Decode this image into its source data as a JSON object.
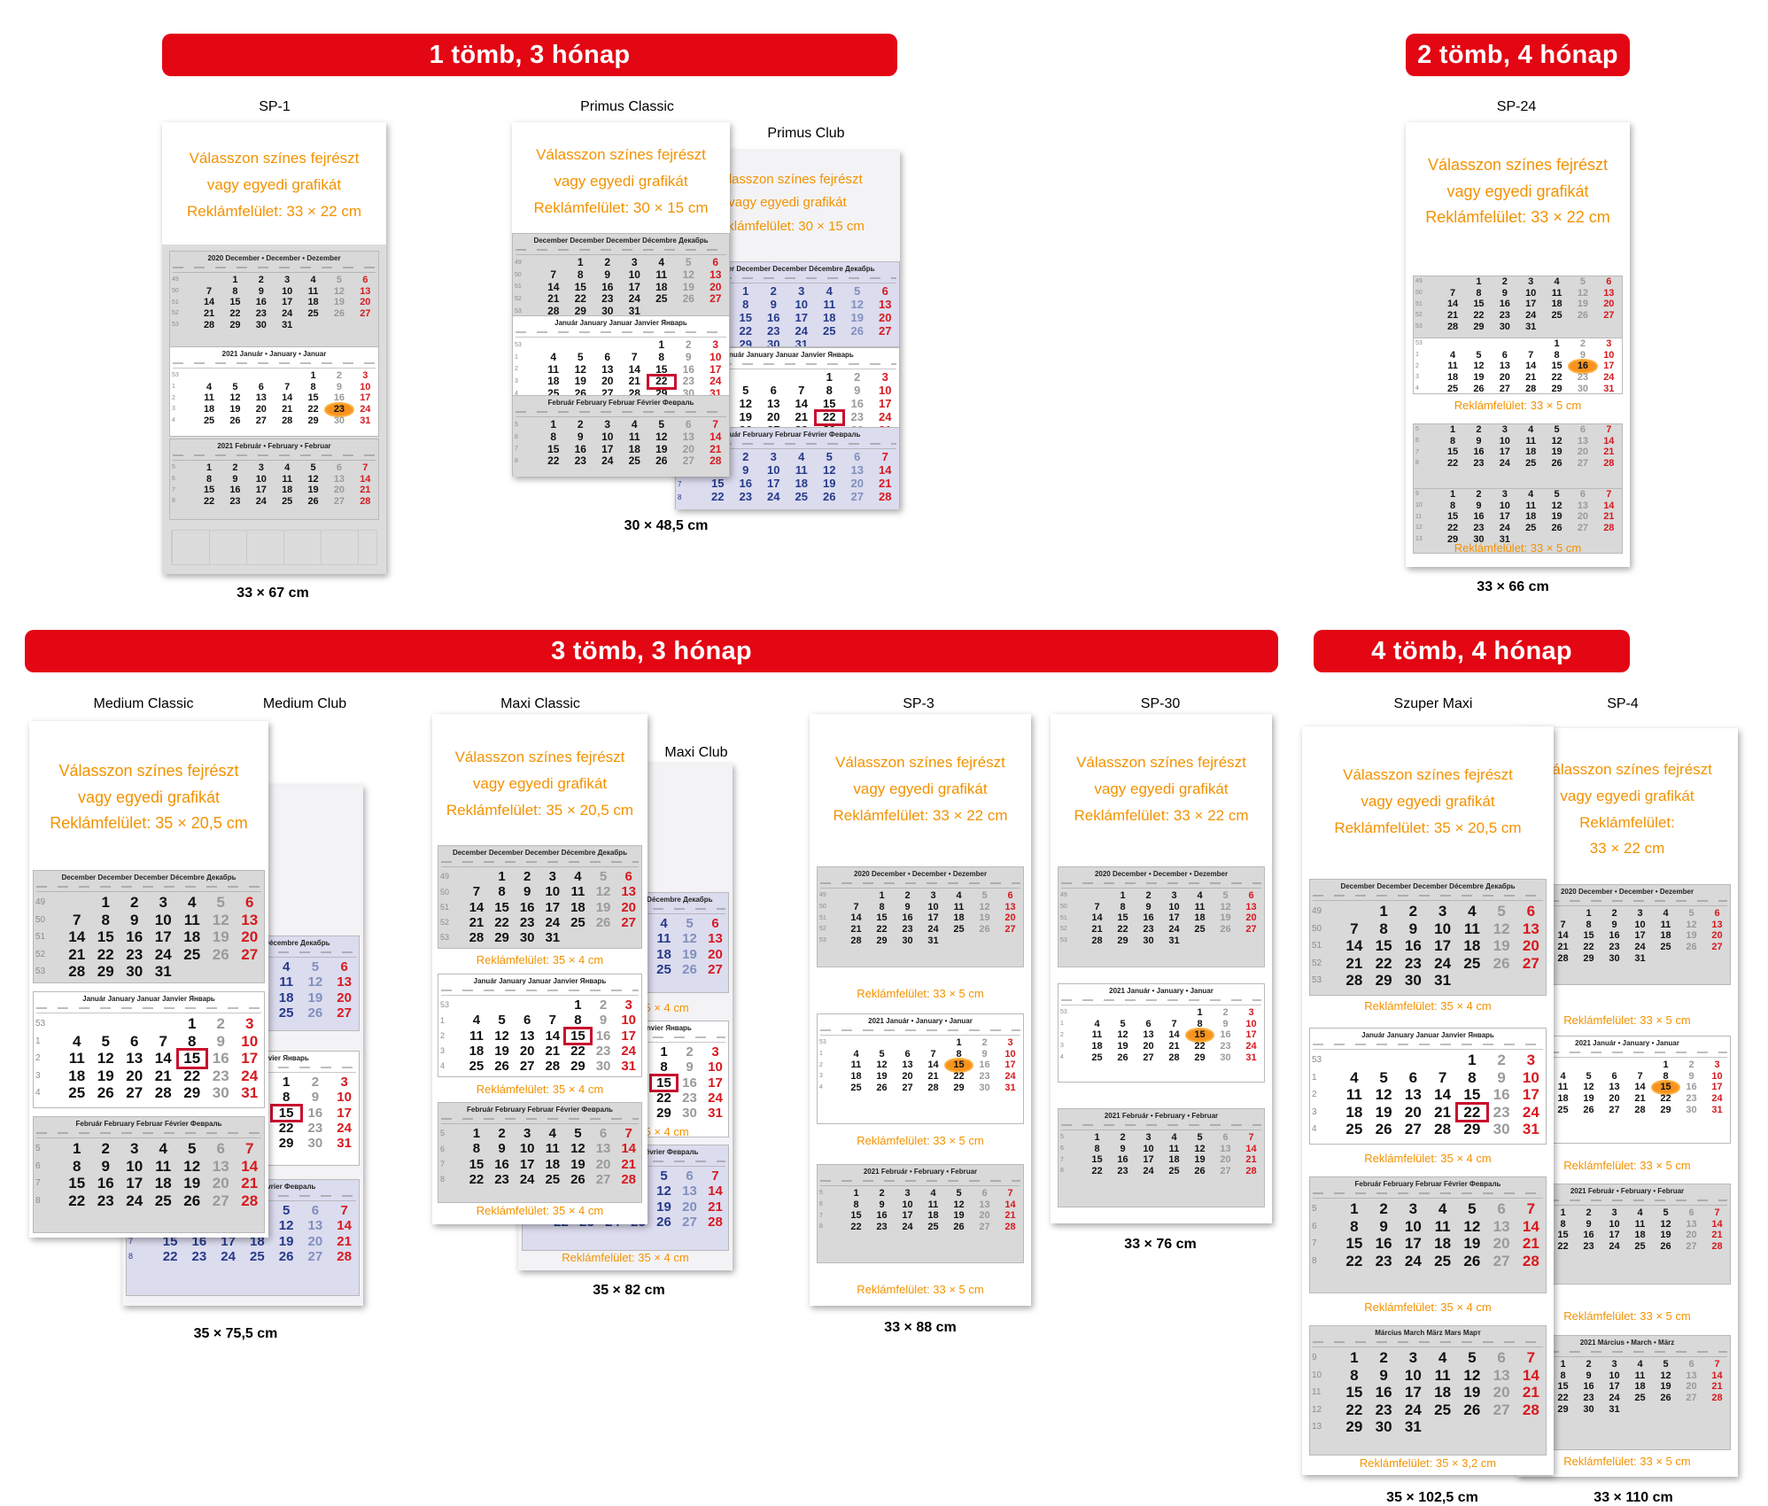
{
  "banners": {
    "b1": "1 tömb, 3 hónap",
    "b2": "2 tömb, 4 hónap",
    "b3": "3 tömb, 3 hónap",
    "b4": "4 tömb, 4 hónap"
  },
  "products": {
    "sp1": {
      "name": "SP-1",
      "dims": "33 × 67 cm"
    },
    "primus_classic": {
      "name": "Primus Classic"
    },
    "primus_club": {
      "name": "Primus Club",
      "dims": "30 × 48,5 cm"
    },
    "sp24": {
      "name": "SP-24",
      "dims": "33 × 66 cm"
    },
    "medium_classic": {
      "name": "Medium Classic"
    },
    "medium_club": {
      "name": "Medium Club",
      "dims": "35 × 75,5 cm"
    },
    "maxi_classic": {
      "name": "Maxi Classic"
    },
    "maxi_club": {
      "name": "Maxi Club",
      "dims": "35 × 82 cm"
    },
    "sp3": {
      "name": "SP-3",
      "dims": "33 × 88 cm"
    },
    "sp30": {
      "name": "SP-30",
      "dims": "33 × 76 cm"
    },
    "szuper_maxi": {
      "name": "Szuper Maxi",
      "dims": "35 × 102,5 cm"
    },
    "sp4": {
      "name": "SP-4",
      "dims": "33 × 110 cm"
    }
  },
  "header": {
    "line1": "Válasszon színes fejrészt",
    "line2": "vagy egyedi grafikát",
    "ad_label": "Reklámfelület:",
    "ad_33x22": "Reklámfelület: 33 × 22 cm",
    "ad_30x15": "Reklámfelület: 30 × 15 cm",
    "ad_35x205": "Reklámfelület: 35 × 20,5 cm",
    "size_33x22": "33 × 22 cm"
  },
  "ad_notes": {
    "n33x5": "Reklámfelület: 33 × 5 cm",
    "n35x4": "Reklámfelület: 35 × 4 cm",
    "n35x32": "Reklámfelület: 35 × 3,2 cm"
  },
  "months": {
    "dec_multi": "2020 December • December • Dezember",
    "jan_multi": "2021 Január • January • Januar",
    "feb_multi": "2021 Február • February • Februar",
    "mar_multi": "2021 Március • March • März",
    "dec_6": "December December December Décembre Декабрь",
    "jan_6": "Január January Januar Janvier Январь",
    "feb_6": "Február February Februar Février Февраль",
    "mar_6": "Március March März Mars Март",
    "year_2020": "2020",
    "year_2021": "2021"
  },
  "colors": {
    "banner": "#e30613",
    "accent_orange": "#f39200",
    "sunday_red": "#d7191f",
    "club_blue": "#263a8a",
    "highlight_red": "#c8102e"
  }
}
